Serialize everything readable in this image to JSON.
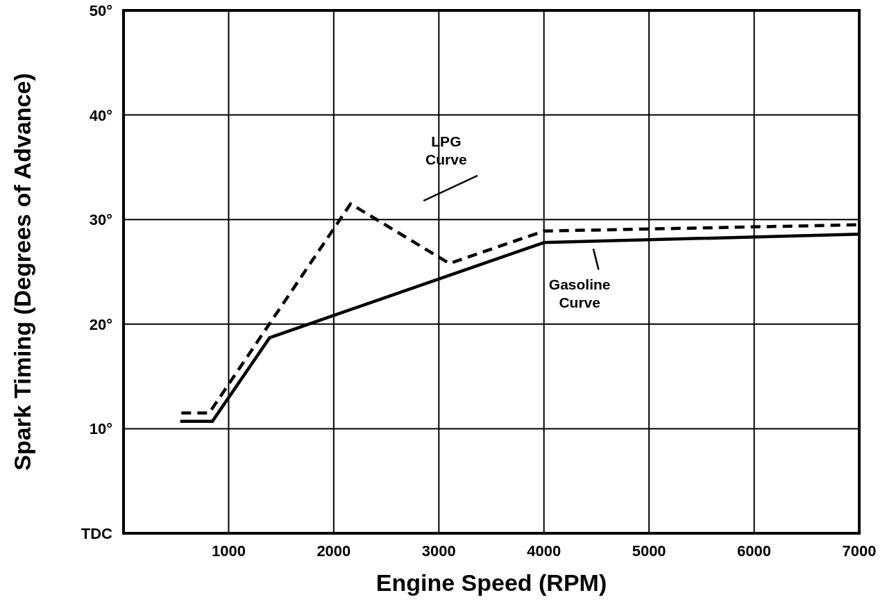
{
  "chart_data": {
    "type": "line",
    "xlabel": "Engine Speed (RPM)",
    "ylabel": "Spark Timing (Degrees of Advance)",
    "xlim": [
      0,
      7000
    ],
    "ylim": [
      0,
      50
    ],
    "xticks": [
      1000,
      2000,
      3000,
      4000,
      5000,
      6000,
      7000
    ],
    "yticks": [
      {
        "value": 0,
        "label": "TDC"
      },
      {
        "value": 10,
        "label": "10°"
      },
      {
        "value": 20,
        "label": "20°"
      },
      {
        "value": 30,
        "label": "30°"
      },
      {
        "value": 40,
        "label": "40°"
      },
      {
        "value": 50,
        "label": "50°"
      }
    ],
    "grid": true,
    "series": [
      {
        "color": "#000000",
        "line_style": "dashed",
        "x": [
          550,
          815,
          2160,
          3100,
          4000,
          7000
        ],
        "values": [
          11.5,
          11.5,
          31.5,
          25.8,
          28.9,
          29.5
        ]
      },
      {
        "color": "#000000",
        "line_style": "solid",
        "x": [
          540,
          845,
          1390,
          4000,
          7000
        ],
        "values": [
          10.7,
          10.7,
          18.7,
          27.8,
          28.6
        ]
      }
    ],
    "annotations": [
      "LPG Curve",
      "Gasoline Curve"
    ]
  }
}
